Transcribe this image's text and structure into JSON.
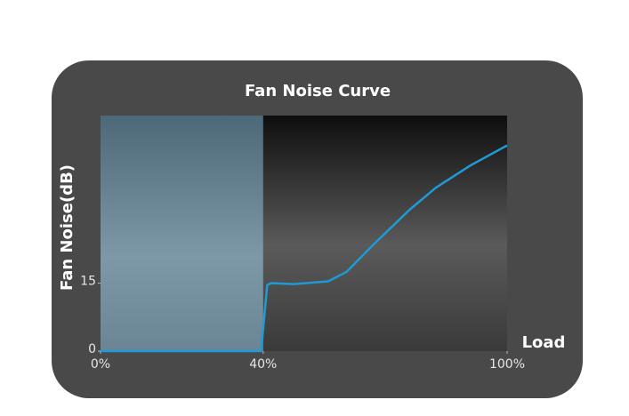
{
  "chart_data": {
    "type": "line",
    "title": "Fan Noise Curve",
    "x_label": "Load",
    "y_label": "Fan Noise(dB)",
    "x": [
      0,
      39.5,
      41,
      42,
      47.5,
      56,
      60.5,
      67,
      76,
      82.5,
      91,
      100
    ],
    "series": [
      {
        "color": "#1e9ad6",
        "values": [
          0,
          0,
          14.6,
          15,
          14.8,
          15.4,
          17.5,
          23.4,
          31.2,
          36.1,
          41,
          45.4
        ]
      }
    ],
    "shaded_range": [
      0,
      40
    ],
    "shaded_color": "#6f8fa0",
    "xlim": [
      0,
      100
    ],
    "xticks": [
      {
        "value": 0,
        "label": "0%"
      },
      {
        "value": 40,
        "label": "40%"
      },
      {
        "value": 100,
        "label": "100%"
      }
    ],
    "ylim": [
      0,
      52
    ],
    "yticks": [
      0,
      15
    ]
  }
}
